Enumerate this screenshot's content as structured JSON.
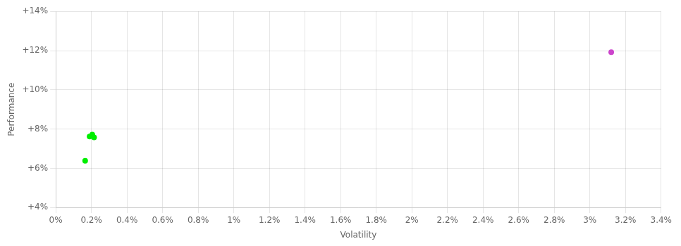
{
  "chart_data": {
    "type": "scatter",
    "xlabel": "Volatility",
    "ylabel": "Performance",
    "xlim": [
      0.0,
      0.034
    ],
    "ylim": [
      0.04,
      0.14
    ],
    "xticks": [
      {
        "value": 0.0,
        "label": "0%"
      },
      {
        "value": 0.002,
        "label": "0.2%"
      },
      {
        "value": 0.004,
        "label": "0.4%"
      },
      {
        "value": 0.006,
        "label": "0.6%"
      },
      {
        "value": 0.008,
        "label": "0.8%"
      },
      {
        "value": 0.01,
        "label": "1%"
      },
      {
        "value": 0.012,
        "label": "1.2%"
      },
      {
        "value": 0.014,
        "label": "1.4%"
      },
      {
        "value": 0.016,
        "label": "1.6%"
      },
      {
        "value": 0.018,
        "label": "1.8%"
      },
      {
        "value": 0.02,
        "label": "2%"
      },
      {
        "value": 0.022,
        "label": "2.2%"
      },
      {
        "value": 0.024,
        "label": "2.4%"
      },
      {
        "value": 0.026,
        "label": "2.6%"
      },
      {
        "value": 0.028,
        "label": "2.8%"
      },
      {
        "value": 0.03,
        "label": "3%"
      },
      {
        "value": 0.032,
        "label": "3.2%"
      },
      {
        "value": 0.034,
        "label": "3.4%"
      }
    ],
    "yticks": [
      {
        "value": 0.04,
        "label": "+4%"
      },
      {
        "value": 0.06,
        "label": "+6%"
      },
      {
        "value": 0.08,
        "label": "+8%"
      },
      {
        "value": 0.1,
        "label": "+10%"
      },
      {
        "value": 0.12,
        "label": "+12%"
      },
      {
        "value": 0.14,
        "label": "+14%"
      }
    ],
    "grid": true,
    "series": [
      {
        "color": "#00ee00",
        "x": [
          0.0019,
          0.00205,
          0.00215,
          0.00165
        ],
        "values": [
          0.0762,
          0.0772,
          0.0757,
          0.0638
        ]
      },
      {
        "color": "#cc44cc",
        "x": [
          0.0312
        ],
        "values": [
          0.1192
        ]
      }
    ]
  }
}
